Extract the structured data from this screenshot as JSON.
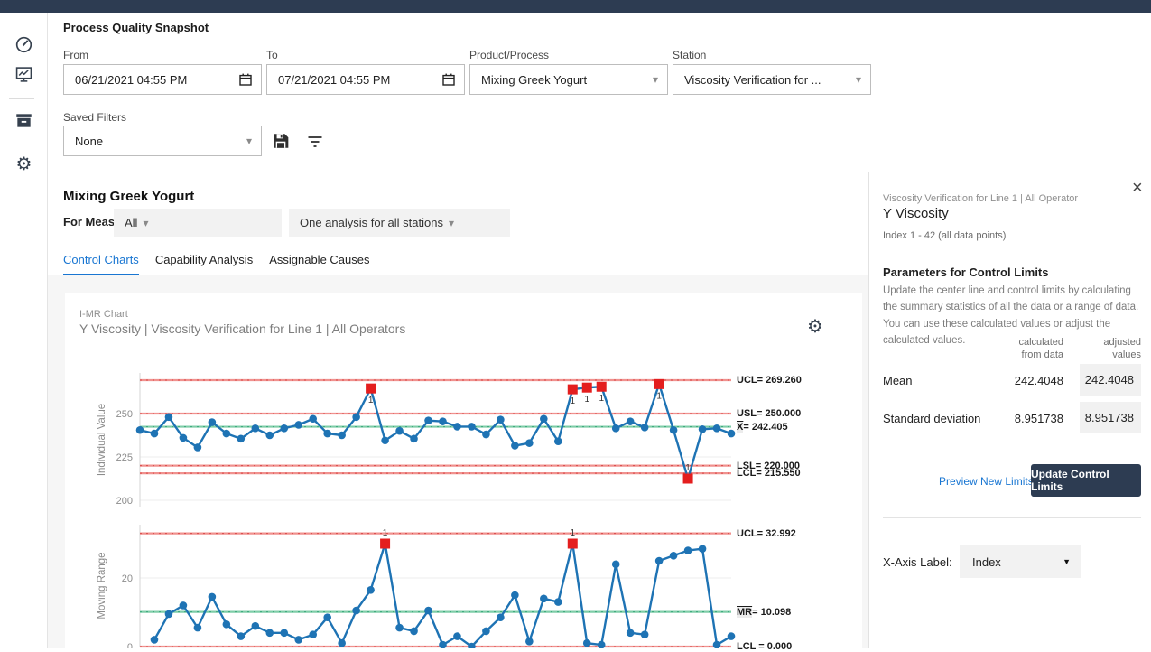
{
  "icons": {
    "gear_glyph": "⚙",
    "close_glyph": "×",
    "caret_glyph": "▾",
    "caret_solid_glyph": "▼"
  },
  "filters": {
    "title": "Process Quality Snapshot",
    "from": {
      "label": "From",
      "value": "06/21/2021 04:55 PM"
    },
    "to": {
      "label": "To",
      "value": "07/21/2021 04:55 PM"
    },
    "product": {
      "label": "Product/Process",
      "value": "Mixing Greek Yogurt"
    },
    "station": {
      "label": "Station",
      "value": "Viscosity Verification for ..."
    },
    "saved": {
      "label": "Saved Filters",
      "value": "None"
    }
  },
  "main": {
    "process_title": "Mixing Greek Yogurt",
    "for_measure_label": "For Measure:",
    "measure_value": "All",
    "analysis_value": "One analysis for all stations",
    "tabs": [
      {
        "label": "Control Charts"
      },
      {
        "label": "Capability Analysis"
      },
      {
        "label": "Assignable Causes"
      }
    ]
  },
  "chart_header": {
    "kicker": "I-MR Chart",
    "title": "Y Viscosity | Viscosity Verification for Line 1 | All Operators"
  },
  "chart_data": [
    {
      "type": "line",
      "name": "individual",
      "ylabel": "Individual Value",
      "yticks": [
        200,
        225,
        250
      ],
      "ylim": [
        197,
        272
      ],
      "x_start_index": 1,
      "total_points": 42,
      "values": [
        240.5,
        238.5,
        248,
        236,
        230.5,
        245,
        238.5,
        235.5,
        241.5,
        237.5,
        241.5,
        243.5,
        247,
        238.5,
        237.5,
        248,
        264.5,
        234.5,
        240,
        235.5,
        246,
        245.5,
        242.5,
        242.5,
        238,
        246.5,
        231.5,
        233,
        247,
        234,
        264,
        265,
        265.5,
        241.5,
        245.5,
        242,
        267,
        240.5,
        212.5,
        241,
        241.5,
        238.5
      ],
      "flagged_points": [
        17,
        31,
        32,
        33,
        37,
        39
      ],
      "flag_label": "1",
      "limit_lines": [
        {
          "bar_over": "",
          "label": "UCL= 269.260",
          "value": 269.26,
          "kind": "red"
        },
        {
          "bar_over": "",
          "label": "USL= 250.000",
          "value": 250.0,
          "kind": "red"
        },
        {
          "bar_over": "X",
          "label": "= 242.405",
          "value": 242.405,
          "kind": "green"
        },
        {
          "bar_over": "",
          "label": "LSL= 220.000",
          "value": 220.0,
          "kind": "red"
        },
        {
          "bar_over": "",
          "label": "LCL= 215.550",
          "value": 215.55,
          "kind": "red"
        }
      ]
    },
    {
      "type": "line",
      "name": "moving_range",
      "ylabel": "Moving Range",
      "yticks": [
        0,
        20
      ],
      "ylim": [
        0,
        37
      ],
      "x_start_index": 2,
      "total_points": 42,
      "values": [
        2,
        9.5,
        12,
        5.5,
        14.5,
        6.5,
        3,
        6,
        4,
        4,
        2,
        3.5,
        8.5,
        1,
        10.5,
        16.5,
        30,
        5.5,
        4.5,
        10.5,
        0.5,
        3,
        0,
        4.5,
        8.5,
        15,
        1.5,
        14,
        13,
        30,
        1,
        0.5,
        24,
        4,
        3.5,
        25,
        26.5,
        28,
        28.5,
        0.5,
        3
      ],
      "flagged_points": [
        18,
        31
      ],
      "flag_label": "1",
      "limit_lines": [
        {
          "bar_over": "",
          "label": "UCL= 32.992",
          "value": 32.992,
          "kind": "red"
        },
        {
          "bar_over": "MR",
          "label": "= 10.098",
          "value": 10.098,
          "kind": "green"
        },
        {
          "bar_over": "",
          "label": "LCL = 0.000",
          "value": 0.0,
          "kind": "red"
        }
      ]
    }
  ],
  "panel": {
    "kicker": "Viscosity Verification for Line 1 | All Operator",
    "title": "Y Viscosity",
    "index_range": "Index 1 - 42 (all data points)",
    "section_title": "Parameters for Control Limits",
    "description": "Update the center line and control limits by calculating the summary statistics of all the data or a range of data. You can use these calculated values or adjust the calculated values.",
    "columns": [
      {
        "line1": "calculated",
        "line2": "from data"
      },
      {
        "line1": "adjusted",
        "line2": "values"
      }
    ],
    "rows": [
      {
        "label": "Mean",
        "calculated": "242.4048",
        "adjusted": "242.4048"
      },
      {
        "label": "Standard deviation",
        "calculated": "8.951738",
        "adjusted": "8.951738"
      }
    ],
    "preview_link": "Preview New Limits",
    "update_button": "Update Control Limits",
    "xaxis_label": "X-Axis Label:",
    "xaxis_value": "Index"
  },
  "colors": {
    "topbar_navy": "#2d3c52",
    "accent_blue": "#1976d2",
    "chart_blue": "#1e73b4",
    "flag_red": "#e41e1e",
    "limit_red_pale": "#f0918e",
    "limit_red_dash": "#d84a4a",
    "center_green_pale": "#7fcda8",
    "center_green_dash": "#3aa87b",
    "grid": "#ededed"
  }
}
